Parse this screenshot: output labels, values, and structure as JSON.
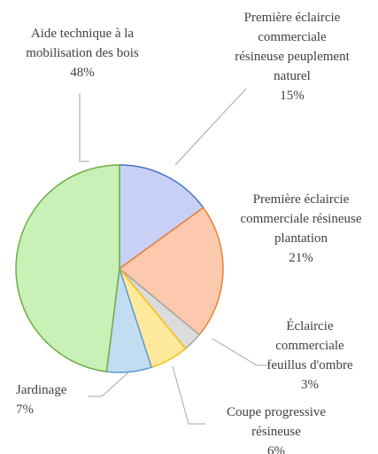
{
  "chart_data": {
    "type": "pie",
    "categories": [
      "Première éclaircie commerciale résineuse peuplement naturel",
      "Première éclaircie commerciale résineuse plantation",
      "Éclaircie commerciale feuillus d'ombre",
      "Coupe progressive résineuse",
      "Jardinage",
      "Aide technique à la mobilisation des bois"
    ],
    "values": [
      15,
      21,
      3,
      6,
      7,
      48
    ],
    "value_labels": [
      "15%",
      "21%",
      "3%",
      "6%",
      "7%",
      "48%"
    ],
    "colors": [
      "#c9d0f5",
      "#fdc9ae",
      "#dcdcdc",
      "#ffe99c",
      "#c2dcf2",
      "#c9f0b6"
    ],
    "edge_colors": [
      "#4472c4",
      "#ed7d31",
      "#a5a5a5",
      "#ffc000",
      "#5b9bd5",
      "#70ad47"
    ]
  }
}
